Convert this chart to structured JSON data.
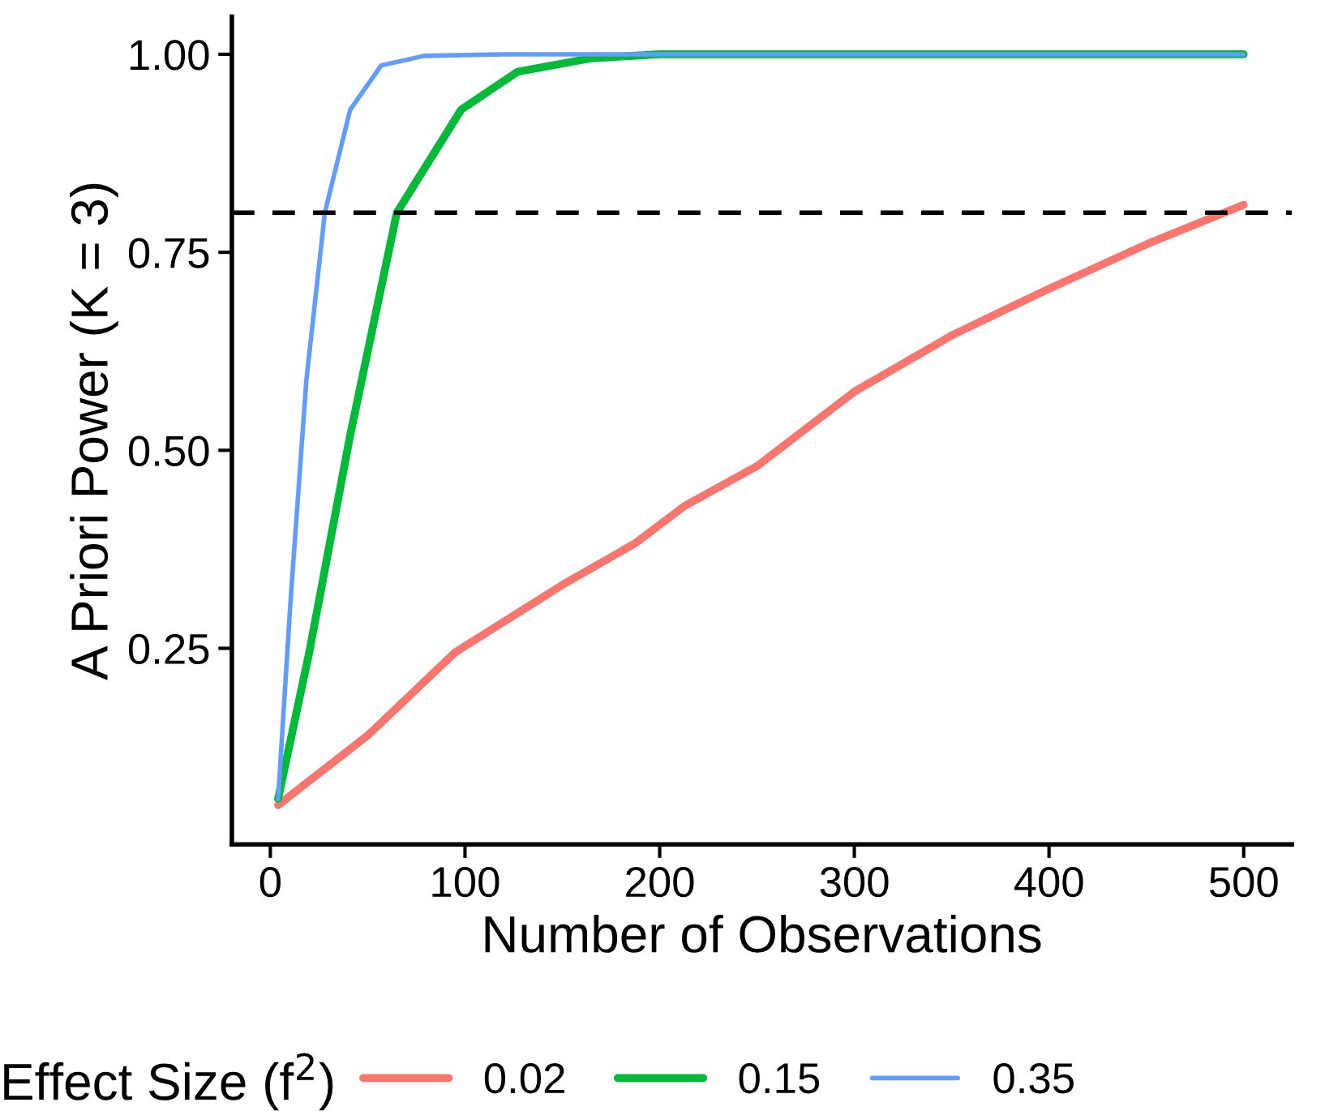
{
  "chart_data": {
    "type": "line",
    "xlabel": "Number of Observations",
    "ylabel": "A Priori Power (K = 3)",
    "legend_title": "Effect Size (f$^{2}$)",
    "legend": "bottom",
    "grid": false,
    "line_style": "solid",
    "marker": "none",
    "xlim": [
      -19.75,
      524.75
    ],
    "ylim": [
      0.0025,
      1.0475
    ],
    "xticks": [
      0,
      100,
      200,
      300,
      400,
      500
    ],
    "yticks": [
      {
        "value": 0.25,
        "label": "0.25"
      },
      {
        "value": 0.5,
        "label": "0.50"
      },
      {
        "value": 0.75,
        "label": "0.75"
      },
      {
        "value": 1.0,
        "label": "1.00"
      }
    ],
    "ref_lines": [
      {
        "axis": "y",
        "value": 0.8,
        "label": null,
        "color": "#000000",
        "line_style": "dashed"
      }
    ],
    "series": [
      {
        "name": "0.02",
        "color": "#F8766D",
        "x": [
          4,
          50,
          95,
          150,
          187,
          213,
          250,
          300,
          350,
          400,
          450,
          500
        ],
        "values": [
          0.052,
          0.14,
          0.245,
          0.33,
          0.382,
          0.43,
          0.48,
          0.574,
          0.645,
          0.704,
          0.76,
          0.81
        ]
      },
      {
        "name": "0.15",
        "color": "#00BA38",
        "x": [
          4,
          20,
          41,
          65,
          98,
          127,
          165,
          200,
          500
        ],
        "values": [
          0.06,
          0.245,
          0.519,
          0.8,
          0.93,
          0.978,
          0.995,
          1.0,
          1.0
        ]
      },
      {
        "name": "0.35",
        "color": "#619CFF",
        "x": [
          4,
          10.5,
          18.5,
          28,
          41,
          57,
          79,
          120,
          500
        ],
        "values": [
          0.06,
          0.314,
          0.588,
          0.8,
          0.93,
          0.986,
          0.998,
          1.0,
          1.0
        ]
      }
    ]
  }
}
